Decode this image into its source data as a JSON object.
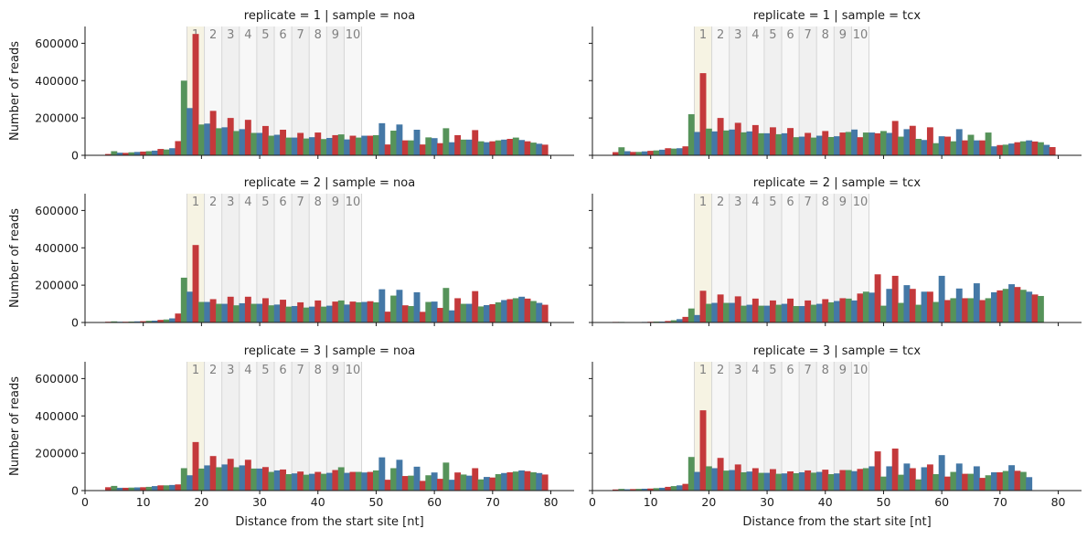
{
  "chart_data": {
    "type": "bar",
    "layout": "3 rows x 2 columns facet grid",
    "xlabel": "Distance from the start site [nt]",
    "ylabel": "Number of reads",
    "xlim": [
      0,
      84
    ],
    "ylim": [
      0,
      690000
    ],
    "x_ticks": [
      0,
      10,
      20,
      30,
      40,
      50,
      60,
      70,
      80
    ],
    "y_ticks": [
      0,
      200000,
      400000,
      600000
    ],
    "frame_colors": [
      "#c4393b",
      "#56935a",
      "#4478a6"
    ],
    "codon_labels": [
      "1",
      "2",
      "3",
      "4",
      "5",
      "6",
      "7",
      "8",
      "9",
      "10"
    ],
    "codon_start_nt": 17.5,
    "codon_width_nt": 3,
    "codon_colors": [
      "#f6f3e3",
      "#f7f7f7",
      "#f0f0f0"
    ],
    "x_start": 4,
    "panels": [
      {
        "title": "replicate = 1 | sample = noa",
        "values": [
          7000,
          22000,
          14000,
          13000,
          16000,
          18000,
          20000,
          22000,
          25000,
          34000,
          31000,
          38000,
          76000,
          400000,
          253000,
          650000,
          165000,
          170000,
          238000,
          145000,
          150000,
          200000,
          130000,
          140000,
          190000,
          120000,
          120000,
          157000,
          105000,
          110000,
          137000,
          95000,
          95000,
          120000,
          90000,
          97000,
          122000,
          87000,
          93000,
          108000,
          112000,
          85000,
          105000,
          95000,
          105000,
          105000,
          108000,
          172000,
          58000,
          132000,
          165000,
          80000,
          80000,
          137000,
          58000,
          96000,
          92000,
          65000,
          145000,
          70000,
          108000,
          84000,
          84000,
          135000,
          75000,
          70000,
          75000,
          80000,
          84000,
          88000,
          95000,
          82000,
          75000,
          68000,
          62000,
          57000
        ]
      },
      {
        "title": "replicate = 1 | sample = tcx",
        "values": [
          17000,
          43000,
          22000,
          18000,
          18000,
          21000,
          24000,
          26000,
          30000,
          38000,
          36000,
          38000,
          48000,
          220000,
          125000,
          440000,
          143000,
          128000,
          200000,
          133000,
          138000,
          174000,
          123000,
          128000,
          162000,
          118000,
          118000,
          150000,
          113000,
          118000,
          146000,
          97000,
          100000,
          120000,
          95000,
          105000,
          130000,
          98000,
          102000,
          122000,
          125000,
          138000,
          97000,
          122000,
          122000,
          118000,
          130000,
          120000,
          184000,
          100000,
          140000,
          158000,
          88000,
          82000,
          150000,
          65000,
          102000,
          100000,
          75000,
          140000,
          80000,
          110000,
          80000,
          80000,
          122000,
          48000,
          55000,
          57000,
          63000,
          70000,
          75000,
          80000,
          74000,
          70000,
          56000,
          44000
        ]
      },
      {
        "title": "replicate = 2 | sample = noa",
        "values": [
          4000,
          6000,
          4000,
          4000,
          5000,
          6000,
          7000,
          9000,
          10000,
          14000,
          16000,
          22000,
          48000,
          240000,
          165000,
          415000,
          110000,
          110000,
          125000,
          100000,
          100000,
          138000,
          92000,
          103000,
          138000,
          100000,
          100000,
          130000,
          92000,
          96000,
          122000,
          85000,
          88000,
          108000,
          80000,
          85000,
          118000,
          85000,
          90000,
          112000,
          118000,
          96000,
          112000,
          108000,
          110000,
          114000,
          108000,
          178000,
          58000,
          144000,
          175000,
          92000,
          88000,
          162000,
          57000,
          110000,
          112000,
          78000,
          185000,
          65000,
          130000,
          100000,
          100000,
          168000,
          86000,
          93000,
          98000,
          108000,
          120000,
          125000,
          130000,
          138000,
          128000,
          115000,
          105000,
          95000
        ]
      },
      {
        "title": "replicate = 2 | sample = tcx",
        "values": [
          3000,
          3000,
          2000,
          2000,
          2000,
          3000,
          4000,
          5000,
          5000,
          8000,
          12000,
          18000,
          30000,
          75000,
          40000,
          170000,
          100000,
          105000,
          150000,
          105000,
          105000,
          140000,
          90000,
          95000,
          128000,
          90000,
          90000,
          118000,
          95000,
          100000,
          128000,
          88000,
          88000,
          118000,
          95000,
          100000,
          125000,
          108000,
          115000,
          130000,
          128000,
          118000,
          155000,
          165000,
          160000,
          258000,
          90000,
          180000,
          250000,
          105000,
          200000,
          180000,
          95000,
          165000,
          165000,
          110000,
          250000,
          120000,
          130000,
          182000,
          130000,
          130000,
          210000,
          120000,
          130000,
          162000,
          172000,
          180000,
          205000,
          190000,
          175000,
          165000,
          150000,
          142000
        ]
      },
      {
        "title": "replicate = 3 | sample = noa",
        "values": [
          18000,
          25000,
          15000,
          15000,
          16000,
          17000,
          18000,
          20000,
          24000,
          28000,
          28000,
          30000,
          33000,
          120000,
          82000,
          260000,
          118000,
          135000,
          185000,
          125000,
          140000,
          170000,
          125000,
          135000,
          165000,
          118000,
          118000,
          126000,
          100000,
          108000,
          113000,
          88000,
          92000,
          102000,
          85000,
          90000,
          100000,
          90000,
          95000,
          110000,
          125000,
          95000,
          100000,
          100000,
          97000,
          100000,
          108000,
          178000,
          58000,
          120000,
          165000,
          78000,
          80000,
          128000,
          52000,
          82000,
          97000,
          63000,
          150000,
          58000,
          97000,
          86000,
          80000,
          120000,
          60000,
          73000,
          70000,
          88000,
          94000,
          98000,
          102000,
          108000,
          104000,
          98000,
          94000,
          86000
        ]
      },
      {
        "title": "replicate = 3 | sample = tcx",
        "values": [
          6000,
          9000,
          7000,
          8000,
          9000,
          10000,
          11000,
          13000,
          15000,
          20000,
          24000,
          28000,
          36000,
          180000,
          100000,
          430000,
          130000,
          120000,
          175000,
          107000,
          110000,
          140000,
          98000,
          102000,
          120000,
          95000,
          95000,
          115000,
          90000,
          92000,
          103000,
          93000,
          98000,
          108000,
          96000,
          100000,
          112000,
          88000,
          92000,
          110000,
          110000,
          104000,
          116000,
          120000,
          130000,
          210000,
          75000,
          130000,
          225000,
          85000,
          145000,
          120000,
          60000,
          125000,
          140000,
          88000,
          190000,
          75000,
          100000,
          145000,
          90000,
          90000,
          130000,
          68000,
          82000,
          98000,
          98000,
          105000,
          136000,
          106000,
          100000,
          72000
        ]
      }
    ]
  }
}
